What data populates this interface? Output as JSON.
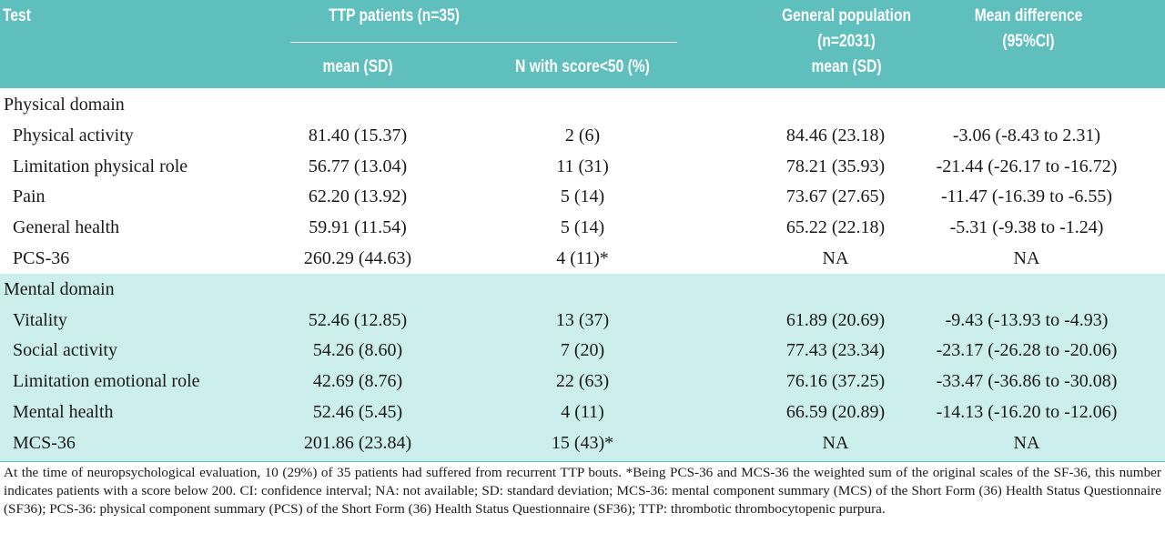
{
  "header": {
    "test": "Test",
    "ttp_group": "TTP patients (n=35)",
    "ttp_mean": "mean (SD)",
    "ttp_n_below": "N with score<50 (%)",
    "general_line1": "General population",
    "general_line2": "(n=2031)",
    "general_line3": "mean (SD)",
    "diff_line1": "Mean difference",
    "diff_line2": "(95%CI)"
  },
  "sections": [
    {
      "title": "Physical domain",
      "rows": [
        {
          "test": "Physical activity",
          "ttp_mean": "81.40 (15.37)",
          "n_below": "2 (6)",
          "gen_mean": "84.46 (23.18)",
          "diff": "-3.06 (-8.43 to 2.31)"
        },
        {
          "test": "Limitation physical role",
          "ttp_mean": "56.77 (13.04)",
          "n_below": "11 (31)",
          "gen_mean": "78.21 (35.93)",
          "diff": "-21.44 (-26.17 to -16.72)"
        },
        {
          "test": "Pain",
          "ttp_mean": "62.20 (13.92)",
          "n_below": "5 (14)",
          "gen_mean": "73.67 (27.65)",
          "diff": "-11.47 (-16.39 to -6.55)"
        },
        {
          "test": "General health",
          "ttp_mean": "59.91 (11.54)",
          "n_below": "5 (14)",
          "gen_mean": "65.22 (22.18)",
          "diff": "-5.31 (-9.38 to -1.24)"
        },
        {
          "test": "PCS-36",
          "ttp_mean": "260.29 (44.63)",
          "n_below": "4 (11)*",
          "gen_mean": "NA",
          "diff": "NA"
        }
      ]
    },
    {
      "title": "Mental domain",
      "rows": [
        {
          "test": "Vitality",
          "ttp_mean": "52.46 (12.85)",
          "n_below": "13 (37)",
          "gen_mean": "61.89 (20.69)",
          "diff": "-9.43 (-13.93 to -4.93)"
        },
        {
          "test": "Social activity",
          "ttp_mean": "54.26 (8.60)",
          "n_below": "7 (20)",
          "gen_mean": "77.43 (23.34)",
          "diff": "-23.17 (-26.28 to -20.06)"
        },
        {
          "test": "Limitation emotional role",
          "ttp_mean": "42.69 (8.76)",
          "n_below": "22 (63)",
          "gen_mean": "76.16 (37.25)",
          "diff": "-33.47 (-36.86 to -30.08)"
        },
        {
          "test": "Mental health",
          "ttp_mean": "52.46 (5.45)",
          "n_below": "4 (11)",
          "gen_mean": "66.59 (20.89)",
          "diff": "-14.13 (-16.20 to -12.06)"
        },
        {
          "test": "MCS-36",
          "ttp_mean": "201.86 (23.84)",
          "n_below": "15 (43)*",
          "gen_mean": "NA",
          "diff": "NA"
        }
      ]
    }
  ],
  "footnote": "At the time of neuropsychological evaluation, 10 (29%) of 35 patients had suffered from recurrent TTP bouts. *Being PCS-36 and MCS-36 the weighted sum of the original scales of the SF-36, this number indicates patients with a score below 200. CI: confidence interval; NA: not available; SD: standard deviation; MCS-36: mental component summary (MCS) of the Short Form (36) Health Status Questionnaire (SF36); PCS-36: physical component summary (PCS) of the Short Form (36) Health Status Questionnaire (SF36); TTP: thrombotic thrombocytopenic purpura."
}
